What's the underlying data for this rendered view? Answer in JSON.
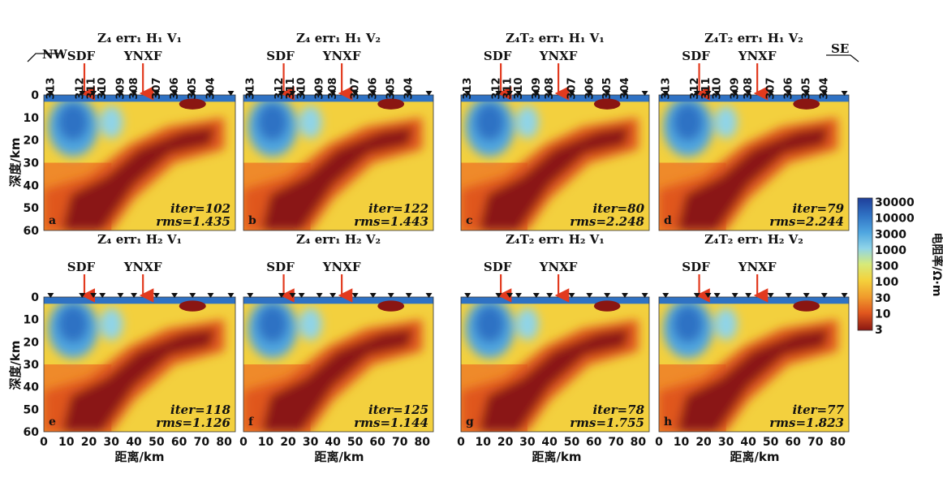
{
  "panels": [
    {
      "id": "a",
      "title": "Z₄ err₁ H₁ V₁",
      "stations": true,
      "iter": "iter=102",
      "rms": "rms=1.435"
    },
    {
      "id": "b",
      "title": "Z₄ err₁ H₁ V₂",
      "stations": true,
      "iter": "iter=122",
      "rms": "rms=1.443"
    },
    {
      "id": "c",
      "title": "Z₄T₂ err₁ H₁ V₁",
      "stations": true,
      "iter": "iter=80",
      "rms": "rms=2.248"
    },
    {
      "id": "d",
      "title": "Z₄T₂ err₁ H₁ V₂",
      "stations": true,
      "iter": "iter=79",
      "rms": "rms=2.244"
    },
    {
      "id": "e",
      "title": "Z₄ err₁ H₂ V₁",
      "stations": false,
      "iter": "iter=118",
      "rms": "rms=1.126"
    },
    {
      "id": "f",
      "title": "Z₄ err₁ H₂ V₂",
      "stations": false,
      "iter": "iter=125",
      "rms": "rms=1.144"
    },
    {
      "id": "g",
      "title": "Z₄T₂ err₁ H₂ V₁",
      "stations": false,
      "iter": "iter=78",
      "rms": "rms=1.755"
    },
    {
      "id": "h",
      "title": "Z₄T₂ err₁ H₂ V₂",
      "stations": false,
      "iter": "iter=77",
      "rms": "rms=1.823"
    }
  ],
  "faults": [
    "SDF",
    "YNXF"
  ],
  "stations": [
    "313",
    "312",
    "311",
    "310",
    "309",
    "308",
    "307",
    "306",
    "305",
    "304"
  ],
  "direction_left": "NW",
  "direction_right": "SE",
  "y_axis_label": "深度/km",
  "x_axis_label": "距离/km",
  "depth_ticks": [
    "0",
    "10",
    "20",
    "30",
    "40",
    "50",
    "60"
  ],
  "distance_ticks": [
    "0",
    "10",
    "20",
    "30",
    "40",
    "50",
    "60",
    "70",
    "80"
  ],
  "colorbar": {
    "title": "电阻率/Ω·m",
    "ticks": [
      "30000",
      "10000",
      "3000",
      "1000",
      "300",
      "100",
      "30",
      "10",
      "3"
    ],
    "colors": [
      "#1f3f9a",
      "#2f72c4",
      "#4fa6e0",
      "#8fd4e8",
      "#d6ea7a",
      "#f4d23c",
      "#f09a2c",
      "#e0561e",
      "#8a1612"
    ]
  }
}
